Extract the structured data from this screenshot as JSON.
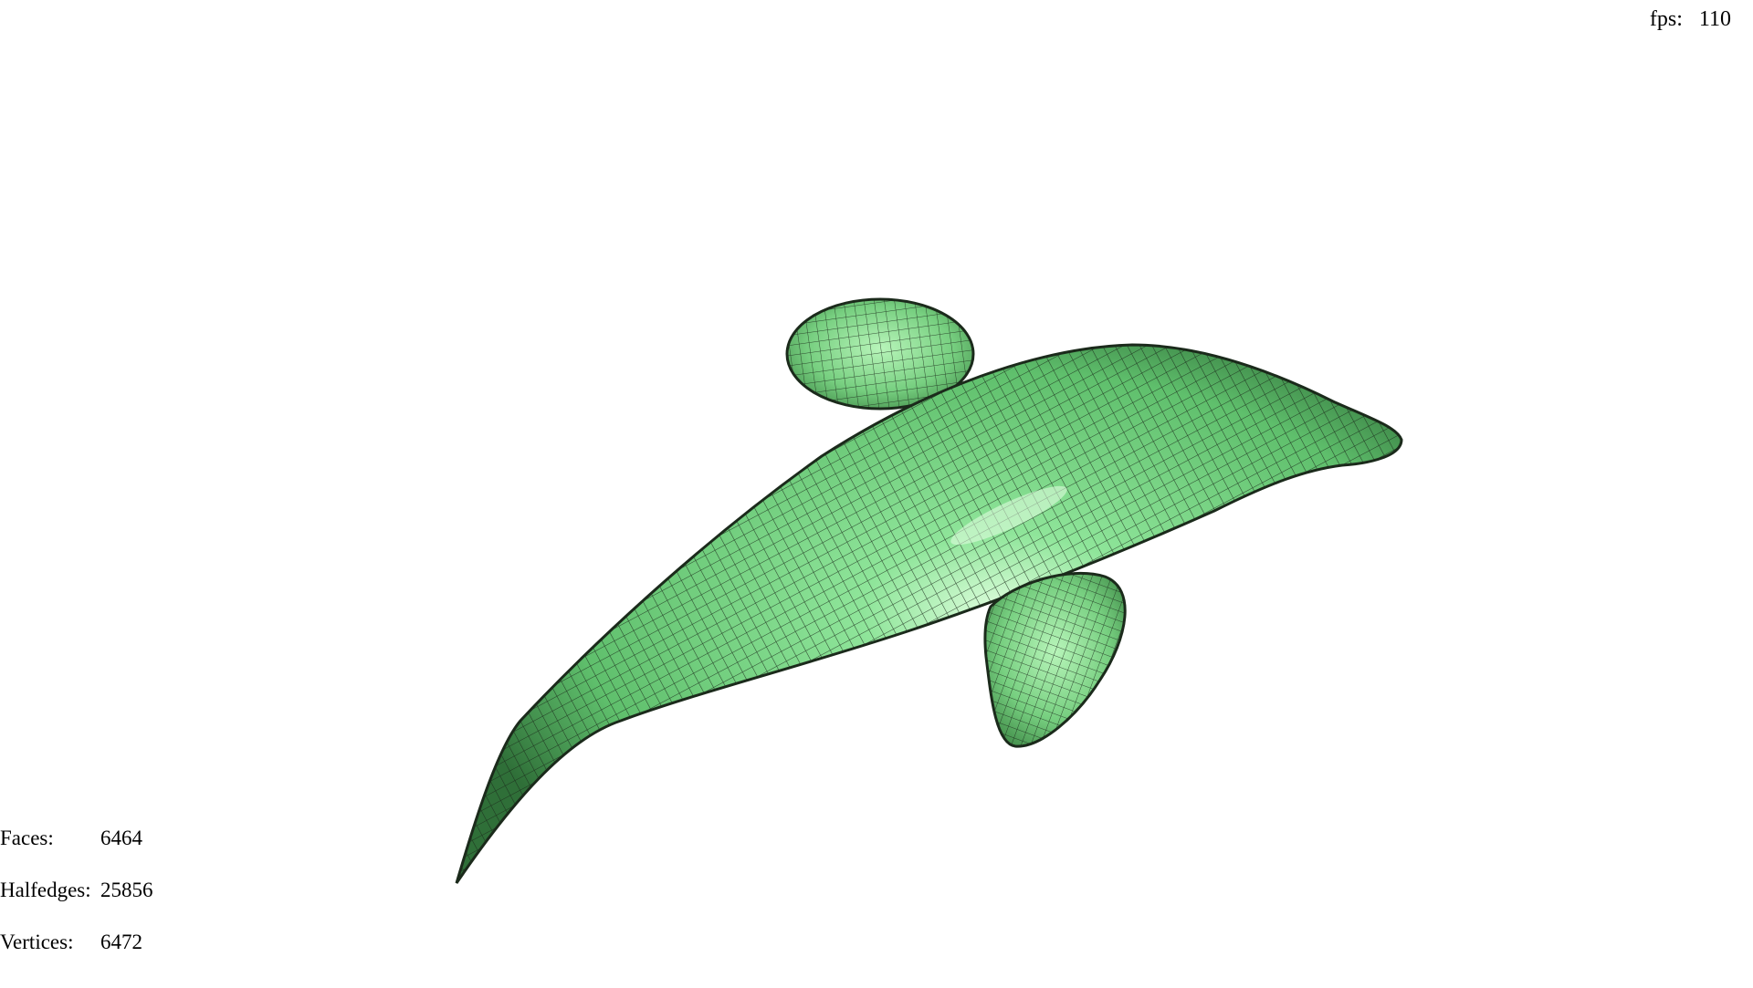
{
  "fps": {
    "label": "fps:",
    "value": "110"
  },
  "stats": {
    "faces_label": "Faces:",
    "faces_value": "6464",
    "halfedges_label": "Halfedges:",
    "halfedges_value": "25856",
    "vertices_label": "Vertices:",
    "vertices_value": "6472"
  },
  "colors": {
    "background": "#ffffff",
    "mesh_fill": "#7fd98a",
    "mesh_highlight": "#d6ffd6",
    "wireframe": "#1b2a1b"
  }
}
